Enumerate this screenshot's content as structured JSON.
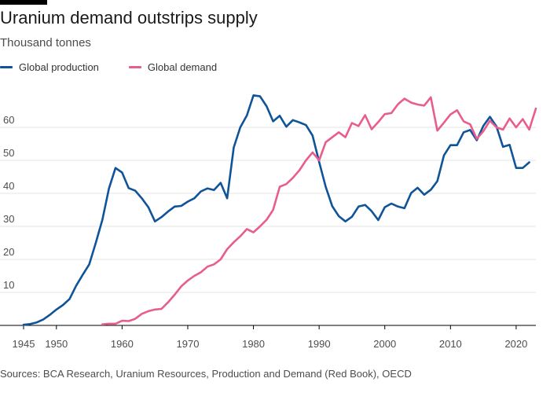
{
  "chart_data": {
    "type": "line",
    "title": "Uranium demand outstrips supply",
    "subtitle": "Thousand tonnes",
    "xlabel": "",
    "ylabel": "",
    "xlim": [
      1945,
      2023
    ],
    "ylim": [
      0,
      70
    ],
    "yticks": [
      10,
      20,
      30,
      40,
      50,
      60
    ],
    "xticks": [
      1945,
      1950,
      1960,
      1970,
      1980,
      1990,
      2000,
      2010,
      2020
    ],
    "grid": "horizontal",
    "legend_position": "top-left",
    "series": [
      {
        "name": "Global production",
        "color": "#0f5499",
        "points": [
          [
            1945,
            0.2
          ],
          [
            1946,
            0.4
          ],
          [
            1947,
            0.9
          ],
          [
            1948,
            1.8
          ],
          [
            1949,
            3.2
          ],
          [
            1950,
            4.8
          ],
          [
            1951,
            6.2
          ],
          [
            1952,
            8
          ],
          [
            1953,
            12
          ],
          [
            1954,
            15.3
          ],
          [
            1955,
            18.5
          ],
          [
            1956,
            25
          ],
          [
            1957,
            32
          ],
          [
            1958,
            41.5
          ],
          [
            1959,
            47.7
          ],
          [
            1960,
            46.3
          ],
          [
            1961,
            41.6
          ],
          [
            1962,
            40.8
          ],
          [
            1963,
            38.5
          ],
          [
            1964,
            35.8
          ],
          [
            1965,
            31.5
          ],
          [
            1966,
            32.8
          ],
          [
            1967,
            34.5
          ],
          [
            1968,
            36
          ],
          [
            1969,
            36.2
          ],
          [
            1970,
            37.5
          ],
          [
            1971,
            38.5
          ],
          [
            1972,
            40.6
          ],
          [
            1973,
            41.5
          ],
          [
            1974,
            41
          ],
          [
            1975,
            43.2
          ],
          [
            1976,
            38.5
          ],
          [
            1977,
            53.9
          ],
          [
            1978,
            60
          ],
          [
            1979,
            63.6
          ],
          [
            1980,
            69.7
          ],
          [
            1981,
            69.4
          ],
          [
            1982,
            66.4
          ],
          [
            1983,
            61.8
          ],
          [
            1984,
            63.5
          ],
          [
            1985,
            60.2
          ],
          [
            1986,
            62.2
          ],
          [
            1987,
            61.5
          ],
          [
            1988,
            60.7
          ],
          [
            1989,
            57.5
          ],
          [
            1990,
            49.5
          ],
          [
            1991,
            42
          ],
          [
            1992,
            36.1
          ],
          [
            1993,
            33.1
          ],
          [
            1994,
            31.5
          ],
          [
            1995,
            32.9
          ],
          [
            1996,
            36
          ],
          [
            1997,
            36.5
          ],
          [
            1998,
            34.6
          ],
          [
            1999,
            31.9
          ],
          [
            2000,
            35.8
          ],
          [
            2001,
            36.9
          ],
          [
            2002,
            36
          ],
          [
            2003,
            35.5
          ],
          [
            2004,
            40.1
          ],
          [
            2005,
            41.7
          ],
          [
            2006,
            39.6
          ],
          [
            2007,
            41.1
          ],
          [
            2008,
            43.7
          ],
          [
            2009,
            51.5
          ],
          [
            2010,
            54.6
          ],
          [
            2011,
            54.6
          ],
          [
            2012,
            58.5
          ],
          [
            2013,
            59.2
          ],
          [
            2014,
            56.1
          ],
          [
            2015,
            60.4
          ],
          [
            2016,
            63.2
          ],
          [
            2017,
            60.3
          ],
          [
            2018,
            54.1
          ],
          [
            2019,
            54.7
          ],
          [
            2020,
            47.7
          ],
          [
            2021,
            47.7
          ],
          [
            2022,
            49.4
          ]
        ]
      },
      {
        "name": "Global demand",
        "color": "#e95d8c",
        "points": [
          [
            1957,
            0.3
          ],
          [
            1958,
            0.5
          ],
          [
            1959,
            0.5
          ],
          [
            1960,
            1.4
          ],
          [
            1961,
            1.3
          ],
          [
            1962,
            2
          ],
          [
            1963,
            3.5
          ],
          [
            1964,
            4.3
          ],
          [
            1965,
            4.8
          ],
          [
            1966,
            5
          ],
          [
            1967,
            7
          ],
          [
            1968,
            9.3
          ],
          [
            1969,
            11.8
          ],
          [
            1970,
            13.6
          ],
          [
            1971,
            15
          ],
          [
            1972,
            16.1
          ],
          [
            1973,
            17.8
          ],
          [
            1974,
            18.5
          ],
          [
            1975,
            20
          ],
          [
            1976,
            23.1
          ],
          [
            1977,
            25.2
          ],
          [
            1978,
            27
          ],
          [
            1979,
            29.2
          ],
          [
            1980,
            28.2
          ],
          [
            1981,
            30
          ],
          [
            1982,
            32
          ],
          [
            1983,
            35
          ],
          [
            1984,
            42
          ],
          [
            1985,
            42.8
          ],
          [
            1986,
            44.7
          ],
          [
            1987,
            47
          ],
          [
            1988,
            50
          ],
          [
            1989,
            52.4
          ],
          [
            1990,
            50
          ],
          [
            1991,
            55.5
          ],
          [
            1992,
            57
          ],
          [
            1993,
            58.5
          ],
          [
            1994,
            57
          ],
          [
            1995,
            61.3
          ],
          [
            1996,
            60.4
          ],
          [
            1997,
            63.7
          ],
          [
            1998,
            59.4
          ],
          [
            1999,
            61.6
          ],
          [
            2000,
            64
          ],
          [
            2001,
            64.3
          ],
          [
            2002,
            67
          ],
          [
            2003,
            68.7
          ],
          [
            2004,
            67.5
          ],
          [
            2005,
            66.9
          ],
          [
            2006,
            66.6
          ],
          [
            2007,
            69.1
          ],
          [
            2008,
            59
          ],
          [
            2009,
            61.4
          ],
          [
            2010,
            63.9
          ],
          [
            2011,
            65.2
          ],
          [
            2012,
            61.8
          ],
          [
            2013,
            60.9
          ],
          [
            2014,
            56.5
          ],
          [
            2015,
            58.8
          ],
          [
            2016,
            62
          ],
          [
            2017,
            60
          ],
          [
            2018,
            59.3
          ],
          [
            2019,
            62.7
          ],
          [
            2020,
            60
          ],
          [
            2021,
            62.5
          ],
          [
            2022,
            59.3
          ],
          [
            2023,
            65.7
          ]
        ]
      }
    ]
  },
  "source": "Sources: BCA Research, Uranium Resources, Production and Demand (Red Book), OECD",
  "colors": {
    "production": "#0f5499",
    "demand": "#e95d8c",
    "grid": "#e6e6e6",
    "axis": "#4d4d4d",
    "text": "#262a33"
  }
}
